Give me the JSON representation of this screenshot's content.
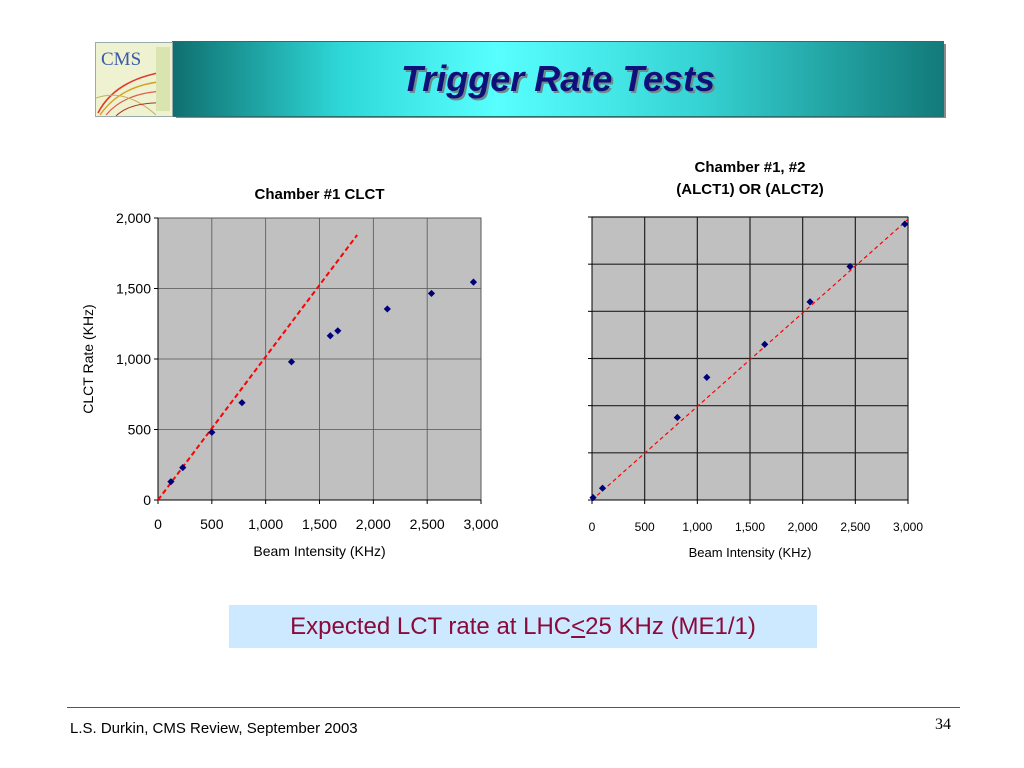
{
  "slide": {
    "title": "Trigger Rate Tests",
    "logo_text": "CMS",
    "callout": {
      "prefix": "Expected LCT rate at LHC ",
      "symbol": "<",
      "suffix": " 25 KHz (ME1/1)"
    },
    "footer_left": "L.S. Durkin,  CMS Review,  September 2003",
    "page_number": "34"
  },
  "chart_data": [
    {
      "type": "scatter",
      "title": "Chamber #1  CLCT",
      "xlabel": "Beam Intensity (KHz)",
      "ylabel": "CLCT Rate (KHz)",
      "xlim": [
        0,
        3000
      ],
      "ylim": [
        0,
        2000
      ],
      "xticks": [
        0,
        500,
        1000,
        1500,
        2000,
        2500,
        3000
      ],
      "xtick_labels": [
        "0",
        "500",
        "1,000",
        "1,500",
        "2,000",
        "2,500",
        "3,000"
      ],
      "yticks": [
        0,
        500,
        1000,
        1500,
        2000
      ],
      "ytick_labels": [
        "0",
        "500",
        "1,000",
        "1,500",
        "2,000"
      ],
      "grid": true,
      "points": [
        {
          "x": 120,
          "y": 130
        },
        {
          "x": 230,
          "y": 230
        },
        {
          "x": 500,
          "y": 480
        },
        {
          "x": 780,
          "y": 690
        },
        {
          "x": 1240,
          "y": 980
        },
        {
          "x": 1600,
          "y": 1165
        },
        {
          "x": 1670,
          "y": 1200
        },
        {
          "x": 2130,
          "y": 1355
        },
        {
          "x": 2540,
          "y": 1465
        },
        {
          "x": 2930,
          "y": 1545
        }
      ],
      "trend_line": {
        "x": [
          0,
          1850
        ],
        "y": [
          0,
          1880
        ]
      },
      "colors": {
        "marker": "#00007a",
        "trend": "#ff0000",
        "plot_bg": "#c0c0c0",
        "grid": "#555555"
      }
    },
    {
      "type": "scatter",
      "title": [
        "Chamber #1, #2",
        "(ALCT1) OR (ALCT2)"
      ],
      "xlabel": "Beam Intensity (KHz)",
      "ylabel": "",
      "xlim": [
        0,
        3000
      ],
      "ylim": [
        0,
        6
      ],
      "xticks": [
        0,
        500,
        1000,
        1500,
        2000,
        2500,
        3000
      ],
      "xtick_labels": [
        "0",
        "500",
        "1,000",
        "1,500",
        "2,000",
        "2,500",
        "3,000"
      ],
      "yticks": [
        0,
        1,
        2,
        3,
        4,
        5,
        6
      ],
      "ytick_labels": [],
      "grid": true,
      "points": [
        {
          "x": 10,
          "y": 0.05
        },
        {
          "x": 100,
          "y": 0.25
        },
        {
          "x": 810,
          "y": 1.75
        },
        {
          "x": 1090,
          "y": 2.6
        },
        {
          "x": 1640,
          "y": 3.3
        },
        {
          "x": 2070,
          "y": 4.2
        },
        {
          "x": 2450,
          "y": 4.95
        },
        {
          "x": 2970,
          "y": 5.85
        }
      ],
      "trend_line": {
        "x": [
          0,
          3000
        ],
        "y": [
          0,
          5.95
        ]
      },
      "colors": {
        "marker": "#00007a",
        "trend": "#ff0000",
        "plot_bg": "#c0c0c0",
        "grid": "#222222"
      }
    }
  ]
}
